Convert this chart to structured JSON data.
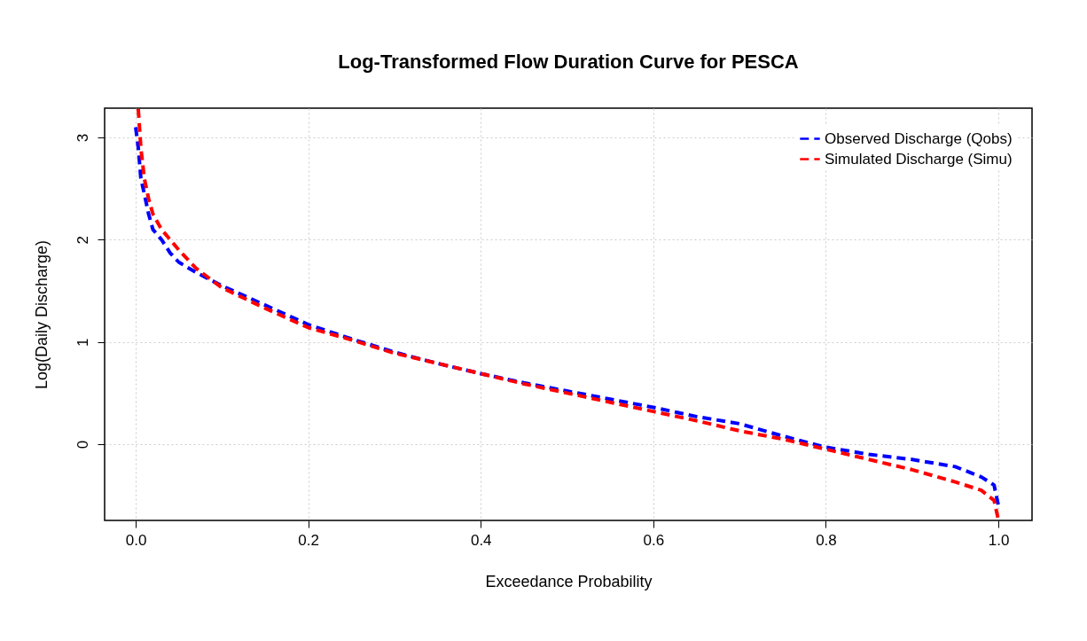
{
  "chart_data": {
    "type": "line",
    "title": "Log-Transformed Flow Duration Curve for PESCA",
    "xlabel": "Exceedance Probability",
    "ylabel": "Log(Daily Discharge)",
    "xlim": [
      -0.036,
      1.039
    ],
    "ylim": [
      -0.746,
      3.287
    ],
    "xticks": [
      {
        "value": 0,
        "label": "0.0"
      },
      {
        "value": 0.2,
        "label": "0.2"
      },
      {
        "value": 0.4,
        "label": "0.4"
      },
      {
        "value": 0.6,
        "label": "0.6"
      },
      {
        "value": 0.8,
        "label": "0.8"
      },
      {
        "value": 1,
        "label": "1.0"
      }
    ],
    "yticks": [
      0,
      1,
      2,
      3
    ],
    "grid": true,
    "legend": "top right",
    "line_style": "dashed",
    "marker": "none",
    "series": [
      {
        "name": "Observed Discharge (Qobs)",
        "color": "#0000ff",
        "x": [
          0.0,
          0.003,
          0.006,
          0.01,
          0.015,
          0.02,
          0.03,
          0.04,
          0.05,
          0.07,
          0.1,
          0.15,
          0.2,
          0.25,
          0.3,
          0.35,
          0.4,
          0.45,
          0.5,
          0.55,
          0.6,
          0.65,
          0.7,
          0.75,
          0.8,
          0.85,
          0.9,
          0.95,
          0.98,
          0.995,
          1.0
        ],
        "values": [
          3.1,
          2.9,
          2.6,
          2.45,
          2.25,
          2.1,
          2.0,
          1.87,
          1.78,
          1.68,
          1.55,
          1.36,
          1.17,
          1.03,
          0.9,
          0.79,
          0.69,
          0.6,
          0.52,
          0.44,
          0.36,
          0.27,
          0.2,
          0.08,
          -0.03,
          -0.1,
          -0.15,
          -0.22,
          -0.32,
          -0.4,
          -0.6
        ]
      },
      {
        "name": "Simulated Discharge (Simu)",
        "color": "#ff0000",
        "x": [
          0.003,
          0.006,
          0.01,
          0.015,
          0.02,
          0.03,
          0.05,
          0.07,
          0.1,
          0.15,
          0.2,
          0.25,
          0.3,
          0.35,
          0.4,
          0.45,
          0.5,
          0.55,
          0.6,
          0.65,
          0.7,
          0.75,
          0.8,
          0.85,
          0.9,
          0.95,
          0.98,
          0.995,
          1.0
        ],
        "values": [
          3.28,
          2.9,
          2.6,
          2.4,
          2.25,
          2.1,
          1.9,
          1.72,
          1.53,
          1.33,
          1.14,
          1.02,
          0.89,
          0.79,
          0.69,
          0.59,
          0.5,
          0.41,
          0.32,
          0.23,
          0.13,
          0.05,
          -0.05,
          -0.15,
          -0.25,
          -0.37,
          -0.45,
          -0.55,
          -0.74
        ]
      }
    ]
  }
}
